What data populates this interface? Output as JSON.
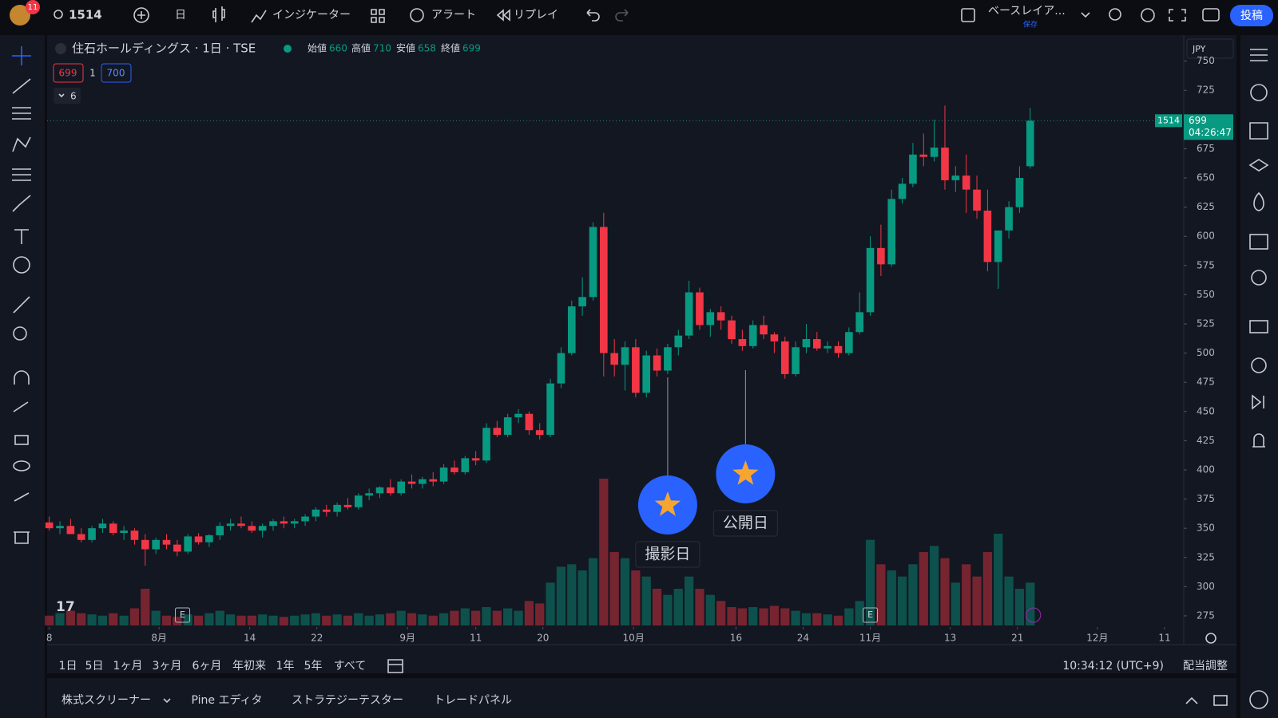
{
  "toolbar": {
    "badge": "11",
    "symbol": "1514",
    "interval": "日",
    "indicators": "インジケーター",
    "alerts": "アラート",
    "replay": "リプレイ",
    "layout": "ベースレイア...",
    "layout_status": "保存",
    "publish": "投稿"
  },
  "legend": {
    "title": "住石ホールディングス · 1日 · TSE",
    "open_label": "始値",
    "open": 660,
    "high_label": "高値",
    "high": 710,
    "low_label": "安値",
    "low": 658,
    "close_label": "終値",
    "close": 699,
    "sell": 699,
    "qty": 1,
    "buy": 700,
    "indicator_count": 6
  },
  "currency": "JPY",
  "price_tag": {
    "price": 699,
    "countdown": "04:26:47"
  },
  "chart_data": {
    "type": "candlestick",
    "up_color": "#089981",
    "down_color": "#f23645",
    "candles": [
      [
        355,
        360,
        348,
        350
      ],
      [
        350,
        356,
        345,
        352
      ],
      [
        352,
        358,
        348,
        345
      ],
      [
        345,
        350,
        338,
        340
      ],
      [
        340,
        352,
        338,
        350
      ],
      [
        350,
        358,
        346,
        354
      ],
      [
        354,
        356,
        344,
        346
      ],
      [
        346,
        352,
        340,
        348
      ],
      [
        348,
        350,
        336,
        340
      ],
      [
        340,
        345,
        318,
        332
      ],
      [
        332,
        342,
        328,
        340
      ],
      [
        340,
        345,
        332,
        336
      ],
      [
        336,
        340,
        326,
        330
      ],
      [
        330,
        345,
        328,
        343
      ],
      [
        343,
        346,
        336,
        338
      ],
      [
        338,
        345,
        334,
        344
      ],
      [
        344,
        355,
        340,
        352
      ],
      [
        352,
        358,
        348,
        354
      ],
      [
        354,
        360,
        350,
        352
      ],
      [
        352,
        356,
        346,
        348
      ],
      [
        348,
        354,
        342,
        352
      ],
      [
        352,
        358,
        348,
        356
      ],
      [
        356,
        360,
        350,
        354
      ],
      [
        354,
        358,
        350,
        356
      ],
      [
        356,
        362,
        352,
        360
      ],
      [
        360,
        368,
        356,
        366
      ],
      [
        366,
        370,
        360,
        364
      ],
      [
        364,
        372,
        360,
        370
      ],
      [
        370,
        376,
        366,
        368
      ],
      [
        368,
        380,
        366,
        378
      ],
      [
        378,
        384,
        374,
        380
      ],
      [
        380,
        386,
        376,
        385
      ],
      [
        385,
        392,
        378,
        380
      ],
      [
        380,
        392,
        378,
        390
      ],
      [
        390,
        396,
        384,
        388
      ],
      [
        388,
        394,
        384,
        392
      ],
      [
        392,
        398,
        386,
        390
      ],
      [
        390,
        405,
        388,
        402
      ],
      [
        402,
        408,
        396,
        398
      ],
      [
        398,
        412,
        396,
        410
      ],
      [
        410,
        416,
        404,
        408
      ],
      [
        408,
        440,
        406,
        436
      ],
      [
        436,
        442,
        428,
        430
      ],
      [
        430,
        448,
        428,
        445
      ],
      [
        445,
        452,
        440,
        448
      ],
      [
        448,
        450,
        430,
        434
      ],
      [
        434,
        440,
        426,
        430
      ],
      [
        430,
        478,
        428,
        474
      ],
      [
        474,
        505,
        470,
        500
      ],
      [
        500,
        545,
        498,
        540
      ],
      [
        540,
        565,
        532,
        548
      ],
      [
        548,
        612,
        545,
        608
      ],
      [
        608,
        620,
        480,
        500
      ],
      [
        500,
        512,
        480,
        490
      ],
      [
        490,
        510,
        468,
        505
      ],
      [
        505,
        512,
        462,
        466
      ],
      [
        466,
        502,
        462,
        498
      ],
      [
        498,
        504,
        480,
        485
      ],
      [
        485,
        508,
        482,
        505
      ],
      [
        505,
        520,
        498,
        515
      ],
      [
        515,
        562,
        512,
        552
      ],
      [
        552,
        556,
        520,
        524
      ],
      [
        524,
        538,
        514,
        535
      ],
      [
        535,
        540,
        520,
        528
      ],
      [
        528,
        532,
        508,
        512
      ],
      [
        512,
        520,
        502,
        506
      ],
      [
        506,
        528,
        504,
        524
      ],
      [
        524,
        532,
        512,
        516
      ],
      [
        516,
        518,
        500,
        510
      ],
      [
        510,
        514,
        478,
        482
      ],
      [
        482,
        510,
        480,
        505
      ],
      [
        505,
        525,
        500,
        512
      ],
      [
        512,
        518,
        502,
        504
      ],
      [
        504,
        510,
        500,
        506
      ],
      [
        506,
        510,
        496,
        500
      ],
      [
        500,
        522,
        498,
        518
      ],
      [
        518,
        552,
        516,
        535
      ],
      [
        535,
        600,
        532,
        590
      ],
      [
        590,
        610,
        566,
        576
      ],
      [
        576,
        640,
        574,
        632
      ],
      [
        632,
        650,
        628,
        645
      ],
      [
        645,
        680,
        642,
        670
      ],
      [
        670,
        688,
        660,
        668
      ],
      [
        668,
        700,
        664,
        676
      ],
      [
        676,
        712,
        640,
        648
      ],
      [
        648,
        660,
        638,
        652
      ],
      [
        652,
        670,
        620,
        640
      ],
      [
        640,
        652,
        615,
        622
      ],
      [
        622,
        640,
        570,
        578
      ],
      [
        578,
        600,
        555,
        605
      ],
      [
        605,
        630,
        598,
        625
      ],
      [
        625,
        660,
        620,
        650
      ],
      [
        660,
        710,
        658,
        699
      ]
    ],
    "volume": [
      8,
      10,
      12,
      10,
      9,
      8,
      10,
      8,
      14,
      30,
      12,
      8,
      7,
      9,
      8,
      10,
      12,
      9,
      8,
      8,
      9,
      8,
      7,
      8,
      9,
      10,
      8,
      9,
      8,
      10,
      8,
      9,
      10,
      12,
      10,
      9,
      8,
      10,
      12,
      14,
      12,
      15,
      12,
      14,
      12,
      20,
      18,
      35,
      48,
      50,
      45,
      55,
      120,
      60,
      55,
      45,
      40,
      30,
      25,
      30,
      40,
      30,
      25,
      20,
      15,
      14,
      15,
      14,
      16,
      14,
      12,
      10,
      10,
      9,
      8,
      14,
      20,
      70,
      50,
      45,
      40,
      50,
      60,
      65,
      55,
      35,
      50,
      40,
      60,
      75,
      40,
      30,
      35
    ],
    "xlim": [
      -0.2,
      106.4
    ],
    "ylim": [
      265.4,
      772.3
    ],
    "xticks": [
      {
        "value": 0,
        "label": "8"
      },
      {
        "value": 10.3,
        "label": "8月"
      },
      {
        "value": 18.8,
        "label": "14"
      },
      {
        "value": 25.1,
        "label": "22"
      },
      {
        "value": 33.6,
        "label": "9月"
      },
      {
        "value": 40,
        "label": "11"
      },
      {
        "value": 46.3,
        "label": "20"
      },
      {
        "value": 54.8,
        "label": "10月"
      },
      {
        "value": 64.4,
        "label": "16"
      },
      {
        "value": 70.7,
        "label": "24"
      },
      {
        "value": 77,
        "label": "11月"
      },
      {
        "value": 84.5,
        "label": "13"
      },
      {
        "value": 90.8,
        "label": "21"
      },
      {
        "value": 98.3,
        "label": "12月"
      },
      {
        "value": 104.6,
        "label": "11"
      }
    ],
    "yticks": [
      275,
      300,
      325,
      350,
      375,
      400,
      425,
      450,
      475,
      500,
      525,
      550,
      575,
      600,
      625,
      650,
      675,
      700,
      725,
      750
    ],
    "grid": false,
    "annotations": [
      {
        "label": "撮影日",
        "x": 58
      },
      {
        "label": "公開日",
        "x": 65.3
      }
    ]
  },
  "range_buttons": [
    "1日",
    "5日",
    "1ヶ月",
    "3ヶ月",
    "6ヶ月",
    "年初来",
    "1年",
    "5年",
    "すべて"
  ],
  "clock": "10:34:12 (UTC+9)",
  "adjust": "配当調整",
  "panel_tabs": [
    "株式スクリーナー",
    "Pine エディタ",
    "ストラテジーテスター",
    "トレードパネル"
  ]
}
